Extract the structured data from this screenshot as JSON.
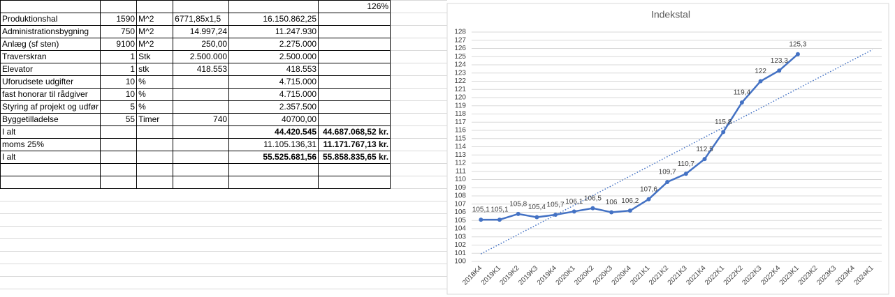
{
  "table": {
    "rows": [
      [
        null,
        null,
        null,
        null,
        null,
        "126%"
      ],
      [
        "Produktionshal",
        "1590",
        "M^2",
        "6771,85x1,5",
        "16.150.862,25",
        null
      ],
      [
        "Administrationsbygning",
        "750",
        "M^2",
        "14.997,24",
        "11.247.930",
        null
      ],
      [
        "Anlæg (sf sten)",
        "9100",
        "M^2",
        "250,00",
        "2.275.000",
        null
      ],
      [
        "Traverskran",
        "1",
        "Stk",
        "2.500.000",
        "2.500.000",
        null
      ],
      [
        "Elevator",
        "1",
        "stk",
        "418.553",
        "418.553",
        null
      ],
      [
        "Uforudsete udgifter",
        "10",
        "%",
        null,
        "4.715.000",
        null
      ],
      [
        "fast honorar til rådgiver",
        "10",
        "%",
        null,
        "4.715.000",
        null
      ],
      [
        "Styring af projekt og udfør",
        "5",
        "%",
        null,
        "2.357.500",
        null
      ],
      [
        "Byggetilladelse",
        "55",
        "Timer",
        "740",
        "40700,00",
        null
      ],
      [
        "I alt",
        null,
        null,
        null,
        "44.420.545",
        "44.687.068,52 kr."
      ],
      [
        "moms 25%",
        null,
        null,
        null,
        "11.105.136,31",
        "11.171.767,13 kr."
      ],
      [
        "I alt",
        null,
        null,
        null,
        "55.525.681,56",
        "55.858.835,65 kr."
      ]
    ]
  },
  "chart_data": {
    "type": "line",
    "title": "Indekstal",
    "categories": [
      "2018K4",
      "2019K1",
      "2019K2",
      "2019K3",
      "2019K4",
      "2020K1",
      "2020K2",
      "2020K3",
      "2020K4",
      "2021K1",
      "2021K2",
      "2021K3",
      "2021K4",
      "2022K1",
      "2022K2",
      "2022K3",
      "2022K4",
      "2023K1",
      "2023K2",
      "2023K3",
      "2023K4",
      "2024K1"
    ],
    "values": [
      105.1,
      105.1,
      105.8,
      105.4,
      105.7,
      106.1,
      106.5,
      106,
      106.2,
      107.6,
      109.7,
      110.7,
      112.5,
      115.8,
      119.4,
      122,
      123.3,
      125.3,
      null,
      null,
      null,
      null
    ],
    "value_labels": [
      "105,1",
      "105,1",
      "105,8",
      "105,4",
      "105,7",
      "106,1",
      "106,5",
      "106",
      "106,2",
      "107,6",
      "109,7",
      "110,7",
      "112,5",
      "115,8",
      "119,4",
      "122",
      "123,3",
      "125,3",
      null,
      null,
      null,
      null
    ],
    "color": "#4472c4",
    "trendline": "linear",
    "ylim": [
      100,
      128
    ],
    "yticks": [
      100,
      101,
      102,
      103,
      104,
      105,
      106,
      107,
      108,
      109,
      110,
      111,
      112,
      113,
      114,
      115,
      116,
      117,
      118,
      119,
      120,
      121,
      122,
      123,
      124,
      125,
      126,
      127,
      128
    ],
    "grid": true
  }
}
